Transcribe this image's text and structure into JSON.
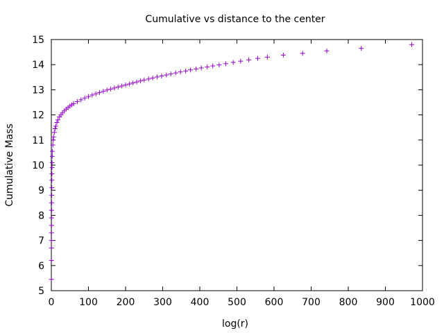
{
  "chart_data": {
    "type": "scatter",
    "title": "Cumulative vs distance to the center",
    "xlabel": "log(r)",
    "ylabel": "Cumulative Mass",
    "xlim": [
      0,
      1000
    ],
    "ylim": [
      5,
      15
    ],
    "xticks": [
      0,
      100,
      200,
      300,
      400,
      500,
      600,
      700,
      800,
      900,
      1000
    ],
    "yticks": [
      5,
      6,
      7,
      8,
      9,
      10,
      11,
      12,
      13,
      14,
      15
    ],
    "grid": false,
    "legend": "none",
    "marker": "plus",
    "marker_color": "#9400d3",
    "series": [
      {
        "x": [
          0.3,
          0.4,
          0.5,
          0.5,
          0.6,
          0.7,
          0.8,
          0.9,
          1.0,
          1.1,
          1.2,
          1.4,
          1.6,
          1.8,
          2,
          2.5,
          3,
          4,
          5,
          6,
          8,
          10,
          12,
          15,
          18,
          22,
          26,
          30,
          35,
          40,
          45,
          50,
          55,
          60,
          70,
          80,
          90,
          100,
          110,
          120,
          130,
          140,
          150,
          160,
          170,
          180,
          190,
          200,
          210,
          220,
          230,
          240,
          250,
          262,
          273,
          285,
          297,
          310,
          322,
          335,
          348,
          362,
          375,
          390,
          404,
          420,
          435,
          452,
          470,
          490,
          510,
          532,
          556,
          582,
          625,
          677,
          742,
          835,
          971
        ],
        "y": [
          5.45,
          6.2,
          6.7,
          7.0,
          7.3,
          7.6,
          7.9,
          8.2,
          8.5,
          8.8,
          9.1,
          9.4,
          9.65,
          9.9,
          10.1,
          10.35,
          10.55,
          10.8,
          11.0,
          11.12,
          11.3,
          11.45,
          11.55,
          11.7,
          11.8,
          11.92,
          12.0,
          12.08,
          12.16,
          12.23,
          12.29,
          12.35,
          12.4,
          12.45,
          12.53,
          12.6,
          12.67,
          12.73,
          12.79,
          12.84,
          12.89,
          12.94,
          12.99,
          13.03,
          13.07,
          13.11,
          13.15,
          13.19,
          13.23,
          13.27,
          13.31,
          13.35,
          13.39,
          13.43,
          13.47,
          13.51,
          13.55,
          13.59,
          13.63,
          13.67,
          13.71,
          13.75,
          13.79,
          13.83,
          13.87,
          13.91,
          13.95,
          13.99,
          14.04,
          14.09,
          14.14,
          14.19,
          14.25,
          14.3,
          14.38,
          14.45,
          14.55,
          14.65,
          14.8
        ]
      }
    ]
  }
}
